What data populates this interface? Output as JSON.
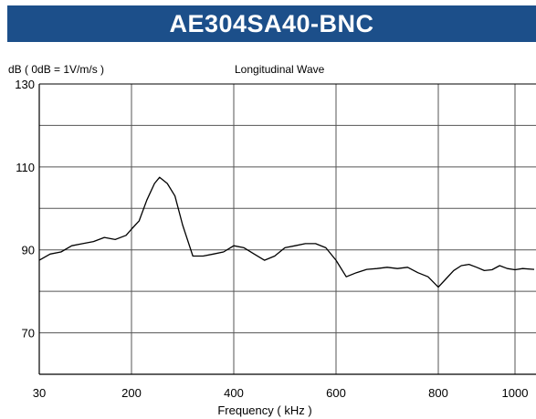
{
  "header": {
    "title": "AE304SA40-BNC",
    "color": "#1c4f8a"
  },
  "chart_data": {
    "type": "line",
    "title": "AE304SA40-BNC",
    "subtitle": "Longitudinal Wave",
    "ylabel": "dB ( 0dB = 1V/m/s )",
    "xlabel": "Frequency ( kHz )",
    "xlim": [
      30,
      1050
    ],
    "ylim": [
      60,
      130
    ],
    "xticks": [
      30,
      200,
      400,
      600,
      800,
      1000
    ],
    "yticks": [
      70,
      90,
      110,
      130
    ],
    "grid": true,
    "line_color": "#000000",
    "series": [
      {
        "x": [
          30,
          50,
          70,
          90,
          110,
          130,
          150,
          170,
          190,
          200,
          215,
          230,
          245,
          255,
          270,
          285,
          300,
          320,
          340,
          360,
          380,
          400,
          420,
          440,
          460,
          480,
          500,
          520,
          540,
          560,
          580,
          600,
          620,
          640,
          660,
          680,
          700,
          720,
          740,
          760,
          780,
          800,
          820,
          840,
          860,
          880,
          900,
          920,
          940,
          960,
          980,
          1000,
          1020,
          1050
        ],
        "y": [
          87.5,
          89,
          89.5,
          91,
          91.5,
          92,
          93,
          92.5,
          93.5,
          95,
          97,
          102,
          106,
          107.5,
          106,
          103,
          96,
          88.5,
          88.5,
          89,
          89.5,
          91,
          90.5,
          89,
          87.5,
          88.5,
          90.5,
          91,
          91.5,
          91.5,
          90.5,
          87.5,
          83.5,
          84.5,
          85.3,
          85.5,
          85.8,
          85.5,
          85.8,
          84.5,
          83.5,
          81,
          83,
          85,
          86.2,
          86.5,
          85.8,
          85,
          85.2,
          86.2,
          85.5,
          85.2,
          85.5,
          85.3
        ]
      }
    ]
  }
}
